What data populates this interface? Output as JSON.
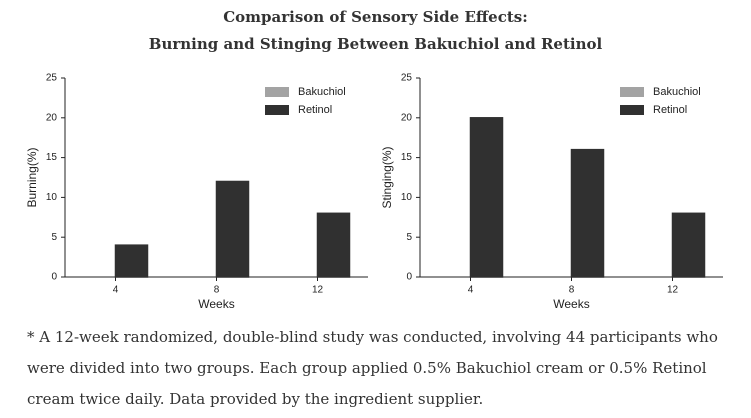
{
  "title": [
    "Comparison of Sensory Side Effects:",
    "Burning and Stinging Between Bakuchiol and Retinol"
  ],
  "chart_data": [
    {
      "type": "bar",
      "x_label": "Weeks",
      "y_label": "Burning(%)",
      "categories": [
        "4",
        "8",
        "12"
      ],
      "series": [
        {
          "name": "Bakuchiol",
          "color": "#a3a3a3",
          "values": [
            0,
            0,
            0
          ]
        },
        {
          "name": "Retinol",
          "color": "#303030",
          "values": [
            4,
            12,
            8
          ]
        }
      ],
      "ylim": [
        0,
        25
      ],
      "yticks": [
        0,
        5,
        10,
        15,
        20,
        25
      ],
      "legend": "upper right"
    },
    {
      "type": "bar",
      "x_label": "Weeks",
      "y_label": "Stinging(%)",
      "categories": [
        "4",
        "8",
        "12"
      ],
      "series": [
        {
          "name": "Bakuchiol",
          "color": "#a3a3a3",
          "values": [
            0,
            0,
            0
          ]
        },
        {
          "name": "Retinol",
          "color": "#303030",
          "values": [
            20,
            16,
            8
          ]
        }
      ],
      "ylim": [
        0,
        25
      ],
      "yticks": [
        0,
        5,
        10,
        15,
        20,
        25
      ],
      "legend": "upper right"
    }
  ],
  "footnote": "* A 12-week randomized, double-blind study was conducted, involving 44 participants who were divided into two groups. Each group applied 0.5% Bakuchiol cream or 0.5% Retinol cream twice daily. Data provided by the ingredient supplier."
}
